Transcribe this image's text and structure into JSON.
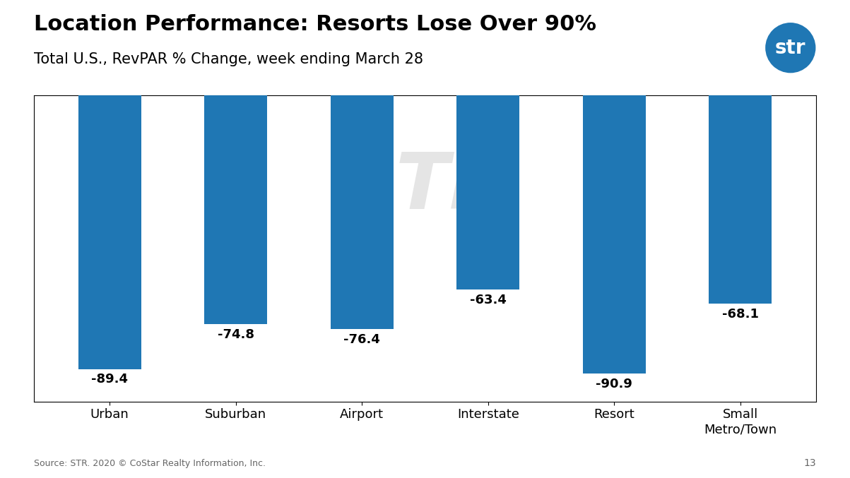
{
  "chart_data": {
    "type": "bar",
    "title": "Location Performance: Resorts Lose Over 90%",
    "subtitle": "Total U.S., RevPAR % Change, week ending March 28",
    "categories": [
      "Urban",
      "Suburban",
      "Airport",
      "Interstate",
      "Resort",
      "Small\nMetro/Town"
    ],
    "values": [
      -89.4,
      -74.8,
      -76.4,
      -63.4,
      -90.9,
      -68.1
    ],
    "ylim": [
      -100,
      0
    ],
    "yticks": [],
    "tick_labels": "x",
    "data_labels": true,
    "grid": false,
    "annotations": [
      "Source: STR. 2020 © CoStar Realty Information, Inc.",
      "13",
      "STR",
      "str"
    ]
  }
}
